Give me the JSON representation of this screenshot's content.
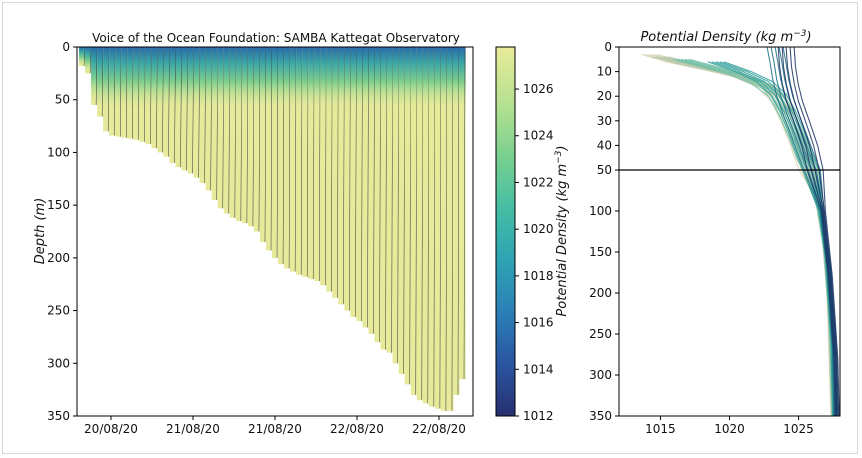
{
  "chart_data": [
    {
      "type": "heatmap",
      "title": "Voice of the Ocean Foundation: SAMBA Kattegat Observatory",
      "xlabel": "",
      "ylabel": "Depth (m)",
      "ylabel_text": "Depth ",
      "ylabel_unit": "(m)",
      "x_tick_labels": [
        "20/08/20",
        "21/08/20",
        "21/08/20",
        "22/08/20",
        "22/08/20"
      ],
      "y_ticks": [
        0,
        50,
        100,
        150,
        200,
        250,
        300,
        350
      ],
      "ylim": [
        350,
        0
      ],
      "colorbar": {
        "label": "Potential Density (kg m⁻³)",
        "label_main": "Potential Density ",
        "label_unit": "(kg m",
        "label_exp": "−3",
        "label_close": ")",
        "ticks": [
          1012,
          1014,
          1016,
          1018,
          1020,
          1022,
          1024,
          1026
        ],
        "range": [
          1012,
          1027.8
        ],
        "colors": [
          "#27306f",
          "#2a55a0",
          "#2b7fb7",
          "#2ea3b4",
          "#44bda4",
          "#78d08f",
          "#b7e191",
          "#e8eb9a"
        ]
      },
      "n_profiles": 64,
      "profile_max_depths": [
        18,
        25,
        55,
        66,
        80,
        84,
        85,
        86,
        87,
        88,
        90,
        92,
        96,
        100,
        104,
        110,
        114,
        117,
        120,
        124,
        129,
        136,
        145,
        153,
        158,
        162,
        165,
        167,
        170,
        175,
        185,
        193,
        200,
        206,
        210,
        213,
        216,
        218,
        220,
        222,
        226,
        232,
        238,
        244,
        250,
        256,
        260,
        266,
        272,
        280,
        287,
        290,
        300,
        310,
        320,
        330,
        335,
        338,
        341,
        343,
        345,
        345,
        330,
        315
      ]
    },
    {
      "type": "line",
      "title": "Potential Density (kg m⁻³)",
      "title_main": "Potential Density ",
      "title_unit": "(kg m",
      "title_exp": "−3",
      "title_close": ")",
      "xlabel": "",
      "ylabel": "",
      "xlim": [
        1012,
        1028
      ],
      "x_ticks": [
        1015,
        1020,
        1025
      ],
      "y_ticks_upper": [
        0,
        10,
        20,
        30,
        40,
        50
      ],
      "y_ticks_lower": [
        50,
        100,
        150,
        200,
        250,
        300,
        350
      ],
      "y_axis_break": 50,
      "ylim": [
        350,
        0
      ],
      "series": [
        {
          "color": "#d8d2b0",
          "points": [
            [
              1014.2,
              3
            ],
            [
              1016.0,
              6
            ],
            [
              1018.5,
              9
            ],
            [
              1020.8,
              12
            ],
            [
              1022.5,
              16
            ],
            [
              1023.6,
              22
            ],
            [
              1024.3,
              30
            ],
            [
              1025.0,
              40
            ],
            [
              1025.6,
              50
            ],
            [
              1026.3,
              80
            ],
            [
              1026.8,
              120
            ],
            [
              1027.2,
              200
            ],
            [
              1027.4,
              300
            ],
            [
              1027.5,
              350
            ]
          ]
        },
        {
          "color": "#b6c9ad",
          "points": [
            [
              1015.0,
              4
            ],
            [
              1017.0,
              7
            ],
            [
              1019.5,
              10
            ],
            [
              1021.5,
              13
            ],
            [
              1023.0,
              17
            ],
            [
              1023.9,
              24
            ],
            [
              1024.6,
              33
            ],
            [
              1025.3,
              42
            ],
            [
              1025.8,
              50
            ],
            [
              1026.4,
              90
            ],
            [
              1026.9,
              140
            ],
            [
              1027.3,
              220
            ],
            [
              1027.5,
              350
            ]
          ]
        },
        {
          "color": "#6fbfa4",
          "points": [
            [
              1016.5,
              5
            ],
            [
              1018.5,
              8
            ],
            [
              1020.5,
              11
            ],
            [
              1022.2,
              15
            ],
            [
              1023.4,
              20
            ],
            [
              1024.2,
              28
            ],
            [
              1024.9,
              37
            ],
            [
              1025.5,
              46
            ],
            [
              1025.9,
              50
            ],
            [
              1026.5,
              95
            ],
            [
              1027.0,
              150
            ],
            [
              1027.4,
              250
            ],
            [
              1027.6,
              350
            ]
          ]
        },
        {
          "color": "#2c9c95",
          "points": [
            [
              1019.0,
              6
            ],
            [
              1021.0,
              10
            ],
            [
              1022.5,
              14
            ],
            [
              1023.5,
              19
            ],
            [
              1024.2,
              26
            ],
            [
              1024.8,
              34
            ],
            [
              1025.4,
              43
            ],
            [
              1025.9,
              50
            ],
            [
              1026.6,
              100
            ],
            [
              1027.1,
              160
            ],
            [
              1027.5,
              260
            ],
            [
              1027.6,
              350
            ]
          ]
        },
        {
          "color": "#1a6e86",
          "points": [
            [
              1023.3,
              0
            ],
            [
              1023.5,
              6
            ],
            [
              1023.7,
              13
            ],
            [
              1024.0,
              20
            ],
            [
              1024.5,
              28
            ],
            [
              1025.1,
              37
            ],
            [
              1025.7,
              46
            ],
            [
              1026.0,
              50
            ],
            [
              1026.7,
              100
            ],
            [
              1027.2,
              170
            ],
            [
              1027.6,
              270
            ],
            [
              1027.7,
              350
            ]
          ]
        },
        {
          "color": "#1d3566",
          "points": [
            [
              1024.1,
              0
            ],
            [
              1024.2,
              8
            ],
            [
              1024.4,
              15
            ],
            [
              1024.7,
              22
            ],
            [
              1025.2,
              30
            ],
            [
              1025.8,
              40
            ],
            [
              1026.2,
              50
            ],
            [
              1026.8,
              100
            ],
            [
              1027.3,
              180
            ],
            [
              1027.7,
              280
            ],
            [
              1027.8,
              350
            ]
          ]
        }
      ]
    }
  ]
}
